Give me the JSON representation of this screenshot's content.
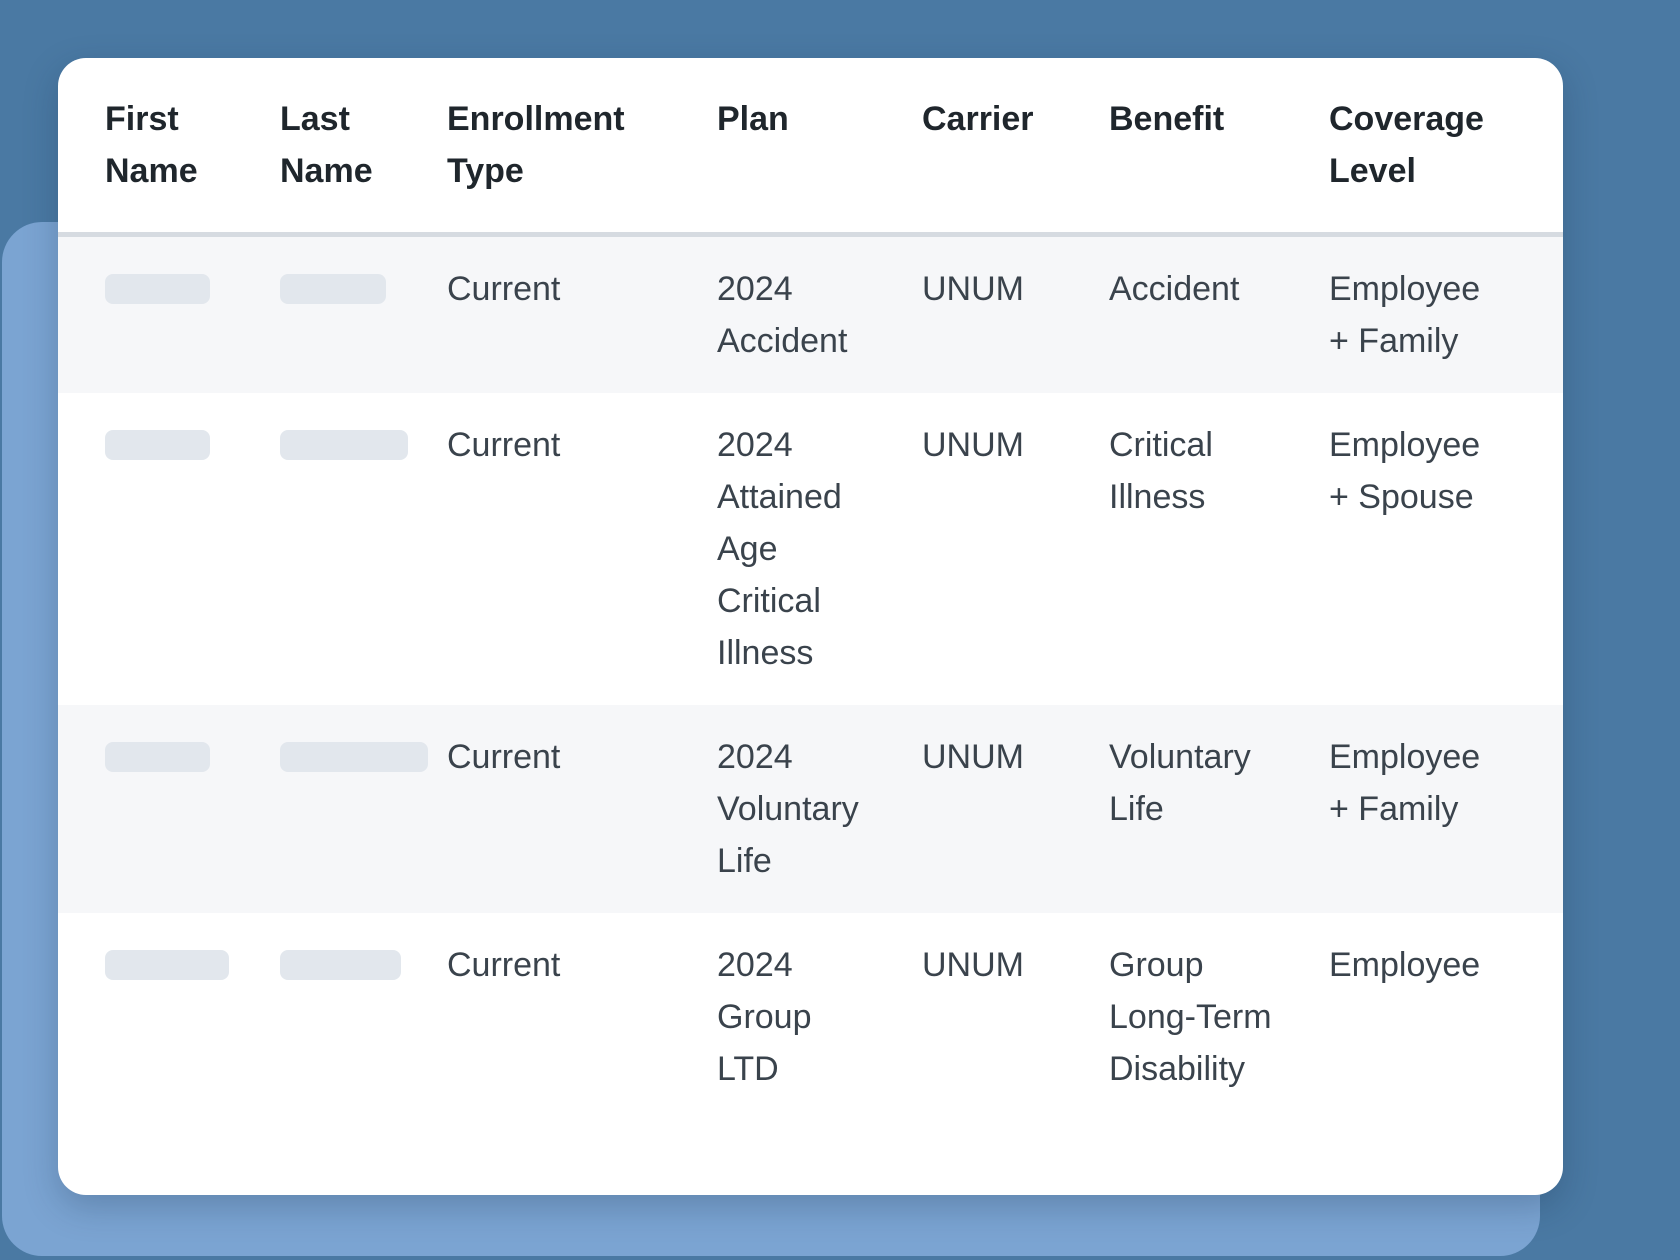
{
  "table": {
    "columns": [
      "First Name",
      "Last Name",
      "Enrollment Type",
      "Plan",
      "Carrier",
      "Benefit",
      "Coverage Level"
    ],
    "rows": [
      {
        "first_name": null,
        "last_name": null,
        "enrollment_type": "Current",
        "plan": "2024 Accident",
        "carrier": "UNUM",
        "benefit": "Accident",
        "coverage_level": "Employee + Family"
      },
      {
        "first_name": null,
        "last_name": null,
        "enrollment_type": "Current",
        "plan": "2024 Attained Age Critical Illness",
        "carrier": "UNUM",
        "benefit": "Critical Illness",
        "coverage_level": "Employee + Spouse"
      },
      {
        "first_name": null,
        "last_name": null,
        "enrollment_type": "Current",
        "plan": "2024 Voluntary Life",
        "carrier": "UNUM",
        "benefit": "Voluntary Life",
        "coverage_level": "Employee + Family"
      },
      {
        "first_name": null,
        "last_name": null,
        "enrollment_type": "Current",
        "plan": "2024 Group LTD",
        "carrier": "UNUM",
        "benefit": "Group Long-Term Disability",
        "coverage_level": "Employee"
      }
    ]
  },
  "colors": {
    "outer_background": "#4a79a3",
    "backdrop_panel": "#7ba4d2",
    "card_background": "#ffffff",
    "row_stripe": "#f6f7f9",
    "divider": "#d6dbe1",
    "placeholder_pill": "#e2e7ed",
    "header_text": "#1f262c",
    "body_text": "#3a434c"
  }
}
